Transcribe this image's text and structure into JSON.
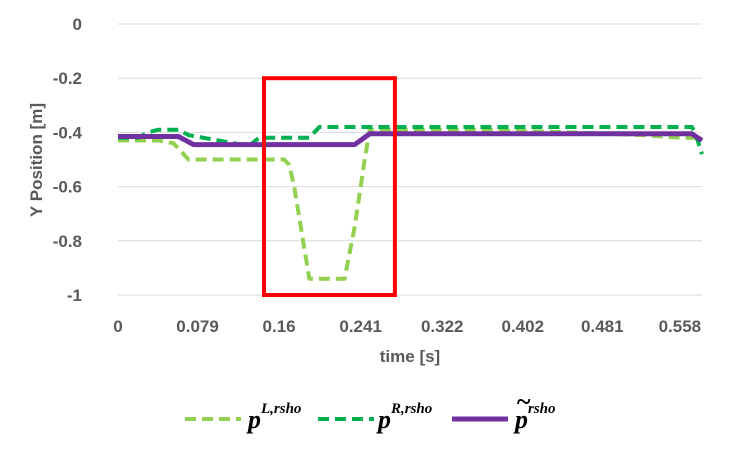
{
  "chart_data": {
    "type": "line",
    "xlabel": "time [s]",
    "ylabel": "Y  Position [m]",
    "x_tick_labels": [
      "0",
      "0.079",
      "0.16",
      "0.241",
      "0.322",
      "0.402",
      "0.481",
      "0.558"
    ],
    "x_tick_values": [
      0,
      0.079,
      0.16,
      0.241,
      0.322,
      0.402,
      0.481,
      0.558
    ],
    "xlim": [
      0,
      0.58
    ],
    "ylim": [
      -1,
      0
    ],
    "y_ticks": [
      0,
      -0.2,
      -0.4,
      -0.6,
      -0.8,
      -1
    ],
    "y_tick_labels": [
      "0",
      "-0.2",
      "-0.4",
      "-0.6",
      "-0.8",
      "-1"
    ],
    "grid": "horizontal",
    "legend_position": "bottom",
    "highlight_box": {
      "x_range": [
        0.145,
        0.275
      ],
      "y_range": [
        -1,
        -0.2
      ],
      "color": "#ff0000"
    },
    "series": [
      {
        "key": "pL",
        "name_main": "p",
        "name_sup": "L,rsho",
        "tilde": false,
        "color": "#92d050",
        "dash": "dash",
        "x": [
          0,
          0.04,
          0.055,
          0.07,
          0.1,
          0.14,
          0.165,
          0.17,
          0.175,
          0.19,
          0.225,
          0.235,
          0.245,
          0.25,
          0.27,
          0.35,
          0.45,
          0.52,
          0.56,
          0.58
        ],
        "y": [
          -0.43,
          -0.43,
          -0.44,
          -0.5,
          -0.5,
          -0.5,
          -0.5,
          -0.52,
          -0.6,
          -0.94,
          -0.94,
          -0.75,
          -0.5,
          -0.39,
          -0.39,
          -0.39,
          -0.4,
          -0.41,
          -0.42,
          -0.42
        ]
      },
      {
        "key": "pR",
        "name_main": "p",
        "name_sup": "R,rsho",
        "tilde": false,
        "color": "#00b050",
        "dash": "dash",
        "x": [
          0,
          0.02,
          0.03,
          0.04,
          0.06,
          0.07,
          0.13,
          0.14,
          0.16,
          0.19,
          0.2,
          0.25,
          0.3,
          0.4,
          0.5,
          0.57,
          0.573,
          0.58
        ],
        "y": [
          -0.42,
          -0.42,
          -0.4,
          -0.39,
          -0.39,
          -0.41,
          -0.45,
          -0.42,
          -0.42,
          -0.42,
          -0.38,
          -0.38,
          -0.38,
          -0.38,
          -0.38,
          -0.38,
          -0.4,
          -0.48
        ]
      },
      {
        "key": "ptilde",
        "name_main": "p",
        "name_sup": "rsho",
        "tilde": true,
        "color": "#7030a0",
        "dash": "solid",
        "x": [
          0,
          0.06,
          0.075,
          0.1,
          0.15,
          0.2,
          0.235,
          0.25,
          0.3,
          0.4,
          0.5,
          0.57,
          0.58
        ],
        "y": [
          -0.415,
          -0.415,
          -0.445,
          -0.445,
          -0.445,
          -0.445,
          -0.445,
          -0.405,
          -0.405,
          -0.405,
          -0.405,
          -0.405,
          -0.43
        ]
      }
    ]
  }
}
